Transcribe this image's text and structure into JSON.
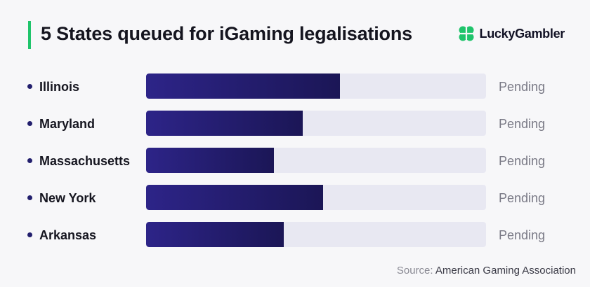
{
  "title": "5 States queued for iGaming legalisations",
  "brand": {
    "name": "LuckyGambler",
    "accent": "#1fc46b",
    "logo_icon": "clover-icon"
  },
  "colors": {
    "bar_fill_start": "#2d2488",
    "bar_fill_end": "#1b1656",
    "track": "#e8e8f2"
  },
  "source": {
    "label": "Source:",
    "value": "American Gaming Association"
  },
  "chart_data": {
    "type": "bar",
    "orientation": "horizontal",
    "title": "5 States queued for iGaming legalisations",
    "categories": [
      "Illinois",
      "Maryland",
      "Massachusetts",
      "New York",
      "Arkansas"
    ],
    "values": [
      57,
      46,
      37.5,
      52,
      40.5
    ],
    "status_labels": [
      "Pending",
      "Pending",
      "Pending",
      "Pending",
      "Pending"
    ],
    "xlim": [
      0,
      100
    ],
    "xlabel": "",
    "ylabel": "",
    "grid": false,
    "legend": "none"
  }
}
